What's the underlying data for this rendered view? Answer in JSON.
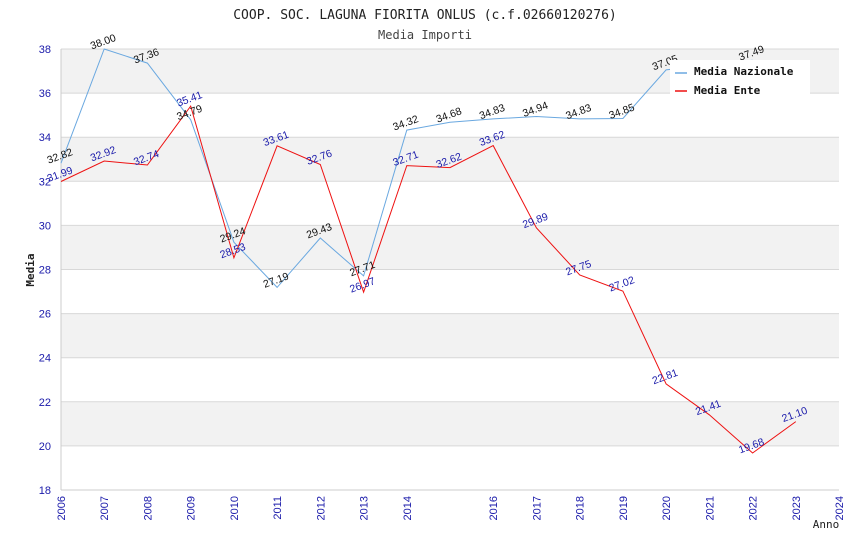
{
  "chart_data": {
    "type": "line",
    "title": "COOP. SOC. LAGUNA FIORITA ONLUS (c.f.02660120276)",
    "subtitle": "Media Importi",
    "xlabel": "Anno",
    "ylabel": "Media",
    "x": [
      "2006",
      "2007",
      "2008",
      "2009",
      "2010",
      "2011",
      "2012",
      "2013",
      "2014",
      "2015",
      "2016",
      "2017",
      "2018",
      "2019",
      "2020",
      "2021",
      "2022",
      "2023",
      "2024"
    ],
    "xticks": [
      "2006",
      "2007",
      "2008",
      "2009",
      "2010",
      "2011",
      "2012",
      "2013",
      "2014",
      "2016",
      "2017",
      "2018",
      "2019",
      "2020",
      "2021",
      "2022",
      "2023",
      "2024"
    ],
    "yticks": [
      "18",
      "20",
      "22",
      "24",
      "26",
      "28",
      "30",
      "32",
      "34",
      "36",
      "38"
    ],
    "ylim": [
      18,
      38
    ],
    "grid": true,
    "legend_position": "top-right",
    "series": [
      {
        "name": "Media Nazionale",
        "color": "#6aa8e0",
        "label_color": "#111111",
        "values": [
          32.82,
          38.0,
          37.36,
          34.79,
          29.24,
          27.19,
          29.43,
          27.71,
          34.32,
          34.68,
          34.83,
          34.94,
          34.83,
          34.85,
          37.05,
          null,
          37.49,
          null,
          null
        ],
        "labels": [
          "32.82",
          "38.00",
          "37.36",
          "34.79",
          "29.24",
          "27.19",
          "29.43",
          "27.71",
          "34.32",
          "34.68",
          "34.83",
          "34.94",
          "34.83",
          "34.85",
          "37.05",
          "",
          "37.49",
          "",
          ""
        ]
      },
      {
        "name": "Media Ente",
        "color": "#ee1111",
        "label_color": "#1a1aaa",
        "values": [
          31.99,
          32.92,
          32.74,
          35.41,
          28.53,
          33.61,
          32.76,
          26.97,
          32.71,
          32.62,
          33.62,
          29.89,
          27.75,
          27.02,
          22.81,
          21.41,
          19.68,
          21.1,
          null
        ],
        "labels": [
          "31.99",
          "32.92",
          "32.74",
          "35.41",
          "28.53",
          "33.61",
          "32.76",
          "26.97",
          "32.71",
          "32.62",
          "33.62",
          "29.89",
          "27.75",
          "27.02",
          "22.81",
          "21.41",
          "19.68",
          "21.10",
          ""
        ]
      }
    ]
  }
}
